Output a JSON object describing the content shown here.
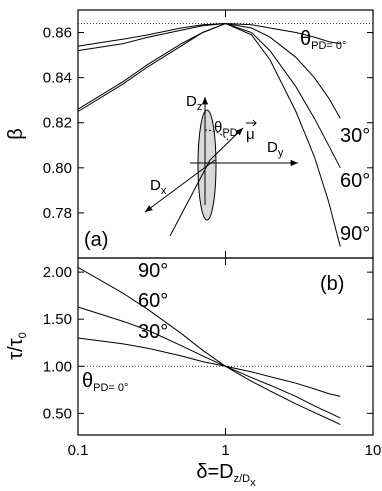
{
  "chart_data": [
    {
      "type": "line",
      "panel_label": "(a)",
      "ylabel": "β",
      "xscale": "log",
      "xlim": [
        0.1,
        10
      ],
      "xticks": [
        0.1,
        1,
        10
      ],
      "ylim": [
        0.76,
        0.87
      ],
      "yticks": [
        {
          "value": 0.78,
          "label": "0.78"
        },
        {
          "value": 0.8,
          "label": "0.80"
        },
        {
          "value": 0.82,
          "label": "0.82"
        },
        {
          "value": 0.84,
          "label": "0.84"
        },
        {
          "value": 0.86,
          "label": "0.86"
        }
      ],
      "ref_line": 0.864,
      "x": [
        0.1,
        0.2,
        0.3,
        0.5,
        0.7,
        1,
        1.5,
        2,
        3,
        4,
        5,
        6
      ],
      "series": [
        {
          "color": "#000000",
          "values": [
            0.854,
            0.857,
            0.859,
            0.862,
            0.8635,
            0.864,
            0.8635,
            0.862,
            0.86,
            0.858,
            0.856,
            0.855
          ]
        },
        {
          "name": "30°",
          "color": "#000000",
          "values": [
            0.852,
            0.855,
            0.858,
            0.861,
            0.863,
            0.864,
            0.862,
            0.858,
            0.849,
            0.84,
            0.831,
            0.822
          ]
        },
        {
          "name": "60°",
          "color": "#000000",
          "values": [
            0.826,
            0.838,
            0.846,
            0.855,
            0.86,
            0.864,
            0.86,
            0.852,
            0.836,
            0.822,
            0.81,
            0.8
          ]
        },
        {
          "name": "90°",
          "color": "#000000",
          "values": [
            0.825,
            0.837,
            0.845,
            0.854,
            0.86,
            0.864,
            0.859,
            0.848,
            0.825,
            0.805,
            0.785,
            0.765
          ]
        }
      ],
      "annotation": {
        "symbol": "θ",
        "sub": "PD",
        "text": "= 0°"
      },
      "inset": {
        "dz": [
          "D",
          "z"
        ],
        "dy": [
          "D",
          "y"
        ],
        "dx": [
          "D",
          "x"
        ],
        "mu": "μ",
        "theta": [
          "θ",
          "PD"
        ]
      }
    },
    {
      "type": "line",
      "panel_label": "(b)",
      "ylabel": [
        "τ/τ",
        "0"
      ],
      "xscale": "log",
      "xlabel": [
        "δ=D",
        "z",
        "/D",
        "x"
      ],
      "xlim": [
        0.1,
        10
      ],
      "xticks": [
        0.1,
        1,
        10
      ],
      "ylim": [
        0.27,
        2.15
      ],
      "yticks": [
        {
          "value": 0.5,
          "label": "0.50"
        },
        {
          "value": 1,
          "label": "1.00"
        },
        {
          "value": 1.5,
          "label": "1.50"
        },
        {
          "value": 2,
          "label": "2.00"
        }
      ],
      "ref_line": 1,
      "x": [
        0.1,
        0.2,
        0.3,
        0.5,
        0.7,
        1,
        1.5,
        2,
        3,
        4,
        5,
        6
      ],
      "series": [
        {
          "name": "90°",
          "color": "#000000",
          "values": [
            2.05,
            1.78,
            1.6,
            1.35,
            1.17,
            1.0,
            0.84,
            0.74,
            0.6,
            0.51,
            0.44,
            0.38
          ]
        },
        {
          "name": "60°",
          "color": "#000000",
          "values": [
            1.63,
            1.48,
            1.38,
            1.22,
            1.11,
            1.0,
            0.88,
            0.8,
            0.68,
            0.58,
            0.51,
            0.45
          ]
        },
        {
          "name": "30°",
          "color": "#000000",
          "values": [
            1.3,
            1.24,
            1.19,
            1.11,
            1.05,
            1.0,
            0.94,
            0.89,
            0.82,
            0.76,
            0.71,
            0.68
          ]
        }
      ],
      "annotation": {
        "symbol": "θ",
        "sub": "PD",
        "text": "= 0°"
      }
    }
  ]
}
